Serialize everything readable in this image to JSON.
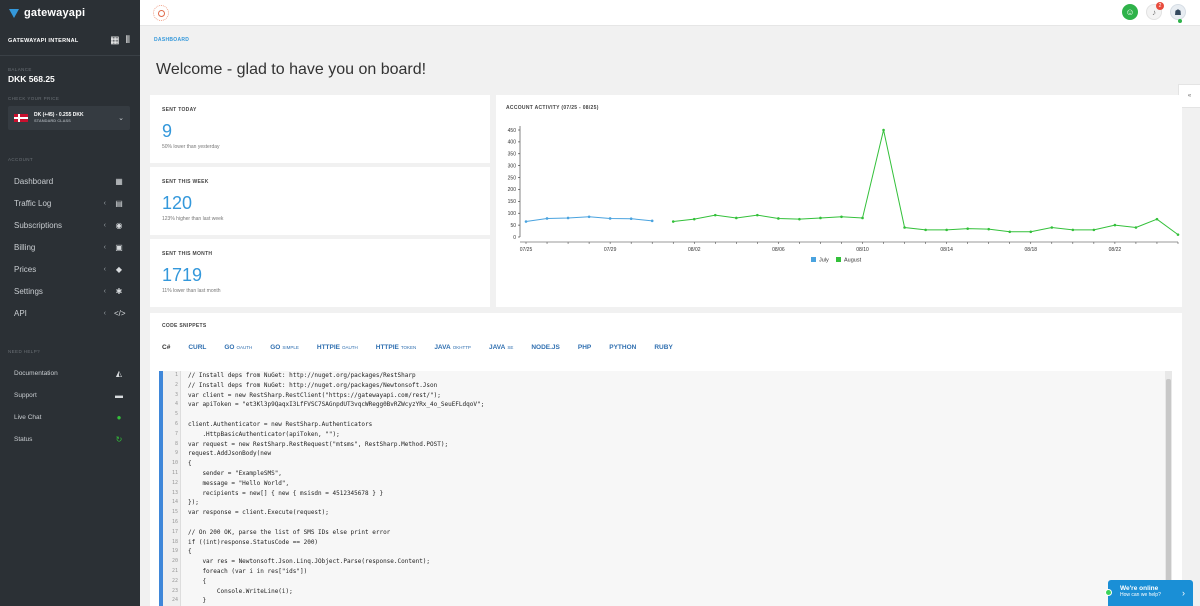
{
  "app": {
    "brand": "gatewayapi",
    "account_name": "GATEWAYAPI INTERNAL"
  },
  "sidebar": {
    "balance_label": "BALANCE",
    "balance_value": "DKK 568.25",
    "price_label": "CHECK YOUR PRICE",
    "price_main": "DK (+45) - 0.255 DKK",
    "price_sub": "STANDARD CLASS",
    "account_section": "ACCOUNT",
    "items": [
      {
        "label": "Dashboard",
        "icon": "dashboard-icon",
        "glyph": "▦",
        "chevron": ""
      },
      {
        "label": "Traffic Log",
        "icon": "traffic-log-icon",
        "glyph": "▤",
        "chevron": "‹"
      },
      {
        "label": "Subscriptions",
        "icon": "subscriptions-icon",
        "glyph": "◉",
        "chevron": "‹"
      },
      {
        "label": "Billing",
        "icon": "billing-icon",
        "glyph": "▣",
        "chevron": "‹"
      },
      {
        "label": "Prices",
        "icon": "tag-icon",
        "glyph": "◆",
        "chevron": "‹"
      },
      {
        "label": "Settings",
        "icon": "gear-icon",
        "glyph": "✱",
        "chevron": "‹"
      },
      {
        "label": "API",
        "icon": "code-icon",
        "glyph": "</>",
        "chevron": "‹"
      }
    ],
    "help_section": "NEED HELP?",
    "help_items": [
      {
        "label": "Documentation",
        "icon": "graduation-cap-icon",
        "glyph": "◭"
      },
      {
        "label": "Support",
        "icon": "chat-icon",
        "glyph": "▬"
      },
      {
        "label": "Live Chat",
        "icon": "live-chat-icon",
        "glyph": "●"
      },
      {
        "label": "Status",
        "icon": "refresh-icon",
        "glyph": "↻"
      }
    ]
  },
  "topbar": {
    "notification_count": "2"
  },
  "main": {
    "breadcrumb": "DASHBOARD",
    "title": "Welcome - glad to have you on board!"
  },
  "stats": [
    {
      "title": "SENT TODAY",
      "value": "9",
      "sub": "50% lower than yesterday"
    },
    {
      "title": "SENT THIS WEEK",
      "value": "120",
      "sub": "123% higher than last week"
    },
    {
      "title": "SENT THIS MONTH",
      "value": "1719",
      "sub": "11% lower than last month"
    }
  ],
  "chart_data": {
    "type": "line",
    "title": "ACCOUNT ACTIVITY (07/25 - 08/25)",
    "ylim": [
      0,
      450
    ],
    "yticks": [
      0,
      50,
      100,
      150,
      200,
      250,
      300,
      350,
      400,
      450
    ],
    "xtick_labels": [
      "07/25",
      "07/29",
      "08/02",
      "08/06",
      "08/10",
      "08/14",
      "08/18",
      "08/22"
    ],
    "xtick_positions": [
      0,
      4,
      8,
      12,
      16,
      20,
      24,
      28
    ],
    "series": [
      {
        "name": "July",
        "color": "#4aa3df",
        "x": [
          0,
          1,
          2,
          3,
          4,
          5,
          6
        ],
        "values": [
          65,
          78,
          80,
          85,
          78,
          77,
          68
        ]
      },
      {
        "name": "August",
        "color": "#33c03a",
        "x": [
          7,
          8,
          9,
          10,
          11,
          12,
          13,
          14,
          15,
          16,
          17,
          18,
          19,
          20,
          21,
          22,
          23,
          24,
          25,
          26,
          27,
          28,
          29,
          30,
          31
        ],
        "values": [
          65,
          75,
          92,
          80,
          92,
          78,
          75,
          80,
          85,
          80,
          450,
          40,
          30,
          30,
          35,
          33,
          22,
          22,
          40,
          30,
          30,
          50,
          40,
          75,
          10
        ]
      }
    ],
    "legend": "bottom"
  },
  "code": {
    "section_title": "CODE SNIPPETS",
    "tabs": [
      {
        "label": "C#",
        "sub": ""
      },
      {
        "label": "CURL",
        "sub": ""
      },
      {
        "label": "GO",
        "sub": "OAUTH"
      },
      {
        "label": "GO",
        "sub": "SIMPLE"
      },
      {
        "label": "HTTPIE",
        "sub": "OAUTH"
      },
      {
        "label": "HTTPIE",
        "sub": "TOKEN"
      },
      {
        "label": "JAVA",
        "sub": "OKHTTP"
      },
      {
        "label": "JAVA",
        "sub": "SE"
      },
      {
        "label": "NODE.JS",
        "sub": ""
      },
      {
        "label": "PHP",
        "sub": ""
      },
      {
        "label": "PYTHON",
        "sub": ""
      },
      {
        "label": "RUBY",
        "sub": ""
      }
    ],
    "lines": [
      "// Install deps from NuGet: http://nuget.org/packages/RestSharp",
      "// Install deps from NuGet: http://nuget.org/packages/Newtonsoft.Json",
      "var client = new RestSharp.RestClient(\"https://gatewayapi.com/rest/\");",
      "var apiToken = \"et3Kl3p9QaqxI3LfFVSC7SAGnpdUT3vqcWRegg0BvRZWcyzYRx_4o_SeuEFLdqoV\";",
      "",
      "client.Authenticator = new RestSharp.Authenticators",
      "    .HttpBasicAuthenticator(apiToken, \"\");",
      "var request = new RestSharp.RestRequest(\"mtsms\", RestSharp.Method.POST);",
      "request.AddJsonBody(new",
      "{",
      "    sender = \"ExampleSMS\",",
      "    message = \"Hello World\",",
      "    recipients = new[] { new { msisdn = 4512345678 } }",
      "});",
      "var response = client.Execute(request);",
      "",
      "// On 200 OK, parse the list of SMS IDs else print error",
      "if ((int)response.StatusCode == 200)",
      "{",
      "    var res = Newtonsoft.Json.Linq.JObject.Parse(response.Content);",
      "    foreach (var i in res[\"ids\"])",
      "    {",
      "        Console.WriteLine(i);",
      "    }"
    ]
  },
  "help_widget": {
    "title": "We're online",
    "subtitle": "How can we help?"
  },
  "side_tab": {
    "glyph": "«"
  }
}
